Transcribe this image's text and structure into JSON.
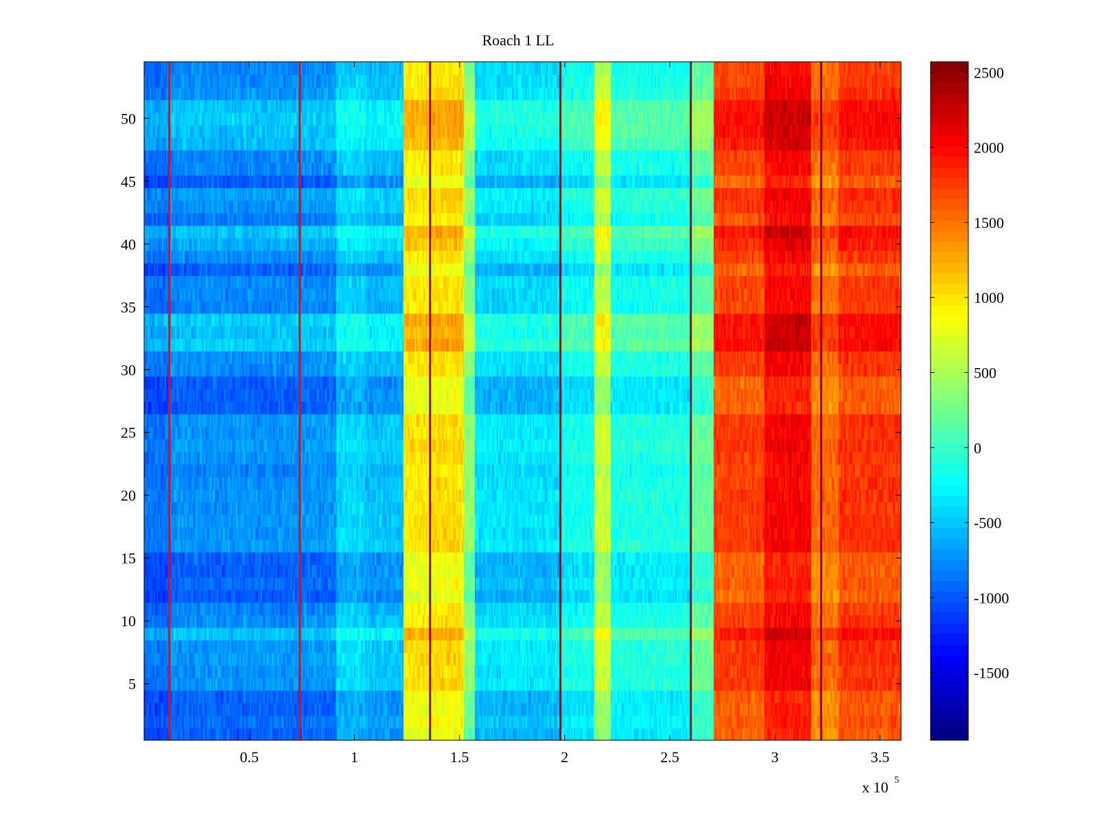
{
  "chart_data": {
    "type": "heatmap",
    "title": "Roach 1 LL",
    "xlabel": "",
    "ylabel": "",
    "x_multiplier_prefix": "x 10",
    "x_multiplier_exponent": "5",
    "xlim": [
      0,
      3.6
    ],
    "ylim": [
      0.5,
      54.5
    ],
    "x_ticks": [
      0.5,
      1,
      1.5,
      2,
      2.5,
      3,
      3.5
    ],
    "x_tick_labels": [
      "0.5",
      "1",
      "1.5",
      "2",
      "2.5",
      "3",
      "3.5"
    ],
    "y_ticks": [
      5,
      10,
      15,
      20,
      25,
      30,
      35,
      40,
      45,
      50
    ],
    "y_tick_labels": [
      "5",
      "10",
      "15",
      "20",
      "25",
      "30",
      "35",
      "40",
      "45",
      "50"
    ],
    "colorbar": {
      "colormap": "jet",
      "clim": [
        -1950,
        2570
      ],
      "ticks": [
        -1500,
        -1000,
        -500,
        0,
        500,
        1000,
        1500,
        2000,
        2500
      ],
      "tick_labels": [
        "-1500",
        "-1000",
        "-500",
        "0",
        "500",
        "1000",
        "1500",
        "2000",
        "2500"
      ]
    },
    "rows": 54,
    "column_segments": [
      {
        "x_start": 0.0,
        "x_end": 0.12,
        "mean": -850
      },
      {
        "x_start": 0.12,
        "x_end": 0.74,
        "mean": -720
      },
      {
        "x_start": 0.74,
        "x_end": 0.91,
        "mean": -700
      },
      {
        "x_start": 0.91,
        "x_end": 1.05,
        "mean": -400
      },
      {
        "x_start": 1.05,
        "x_end": 1.23,
        "mean": -500
      },
      {
        "x_start": 1.23,
        "x_end": 1.36,
        "mean": 1000
      },
      {
        "x_start": 1.36,
        "x_end": 1.52,
        "mean": 1050
      },
      {
        "x_start": 1.52,
        "x_end": 1.57,
        "mean": 400
      },
      {
        "x_start": 1.57,
        "x_end": 1.98,
        "mean": -350
      },
      {
        "x_start": 1.98,
        "x_end": 2.14,
        "mean": -150
      },
      {
        "x_start": 2.14,
        "x_end": 2.22,
        "mean": 650
      },
      {
        "x_start": 2.22,
        "x_end": 2.6,
        "mean": -100
      },
      {
        "x_start": 2.6,
        "x_end": 2.71,
        "mean": 200
      },
      {
        "x_start": 2.71,
        "x_end": 2.95,
        "mean": 1750
      },
      {
        "x_start": 2.95,
        "x_end": 3.17,
        "mean": 2050
      },
      {
        "x_start": 3.17,
        "x_end": 3.3,
        "mean": 1550
      },
      {
        "x_start": 3.3,
        "x_end": 3.6,
        "mean": 1800
      }
    ],
    "vertical_lines": [
      {
        "x": 0.12,
        "value": 2000
      },
      {
        "x": 0.74,
        "value": 2000
      },
      {
        "x": 1.36,
        "value": 2400
      },
      {
        "x": 1.98,
        "value": 2300
      },
      {
        "x": 2.6,
        "value": 2400
      },
      {
        "x": 3.22,
        "value": 2500
      }
    ],
    "low_row_bands": [
      1,
      2,
      3,
      4,
      10,
      11,
      12,
      13,
      14,
      15,
      27,
      28,
      29,
      30,
      31,
      35,
      36,
      37,
      38,
      42,
      43,
      45,
      46,
      47
    ],
    "high_row_bands": [
      9,
      10,
      11,
      30,
      31,
      32,
      33,
      34,
      35,
      36,
      37,
      41,
      42,
      43,
      46,
      47,
      48,
      49,
      50,
      51
    ]
  }
}
